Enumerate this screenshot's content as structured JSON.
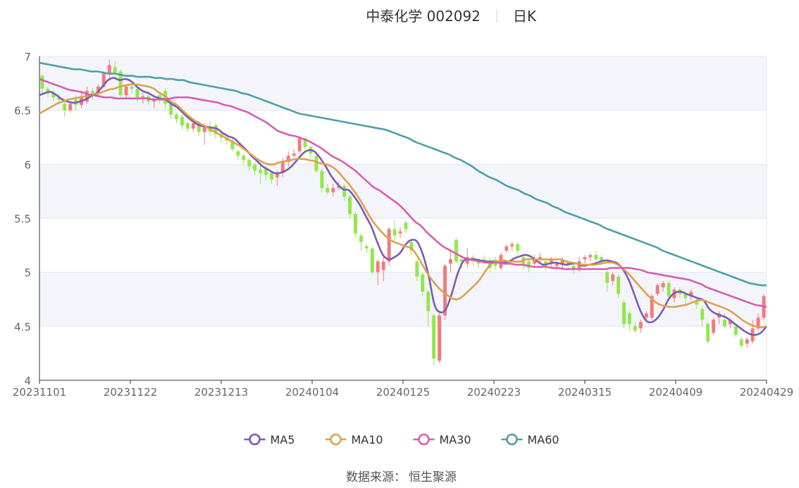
{
  "header": {
    "stock_name": "中泰化学 002092",
    "period": "日K"
  },
  "source": {
    "label": "数据来源：",
    "value": "恒生聚源"
  },
  "colors": {
    "up": "#f47a7a",
    "down": "#91e84a",
    "MA5": "#7b5cb5",
    "MA10": "#e0a050",
    "MA30": "#d65fb0",
    "MA60": "#4e9fa6",
    "band": "#f3f5fb",
    "grid": "#e2e6f0",
    "axis": "#666666"
  },
  "chart_data": {
    "type": "candlestick",
    "x_labels": [
      "20231101",
      "20231122",
      "20231213",
      "20240104",
      "20240125",
      "20240223",
      "20240315",
      "20240409",
      "20240429"
    ],
    "ylim": [
      4,
      7
    ],
    "yticks": [
      4,
      4.5,
      5,
      5.5,
      6,
      6.5,
      7
    ],
    "legend": [
      "MA5",
      "MA10",
      "MA30",
      "MA60"
    ],
    "legend_position": "bottom",
    "candles": [
      [
        6.82,
        6.7,
        6.84,
        6.66
      ],
      [
        6.7,
        6.66,
        6.72,
        6.62
      ],
      [
        6.66,
        6.62,
        6.69,
        6.58
      ],
      [
        6.62,
        6.6,
        6.65,
        6.56
      ],
      [
        6.56,
        6.5,
        6.58,
        6.44
      ],
      [
        6.5,
        6.56,
        6.58,
        6.48
      ],
      [
        6.6,
        6.55,
        6.64,
        6.5
      ],
      [
        6.55,
        6.62,
        6.66,
        6.52
      ],
      [
        6.58,
        6.68,
        6.72,
        6.56
      ],
      [
        6.68,
        6.65,
        6.7,
        6.6
      ],
      [
        6.65,
        6.72,
        6.74,
        6.62
      ],
      [
        6.72,
        6.84,
        6.86,
        6.7
      ],
      [
        6.84,
        6.92,
        6.97,
        6.8
      ],
      [
        6.9,
        6.85,
        6.96,
        6.82
      ],
      [
        6.86,
        6.64,
        6.88,
        6.6
      ],
      [
        6.64,
        6.72,
        6.74,
        6.6
      ],
      [
        6.72,
        6.7,
        6.75,
        6.66
      ],
      [
        6.7,
        6.62,
        6.72,
        6.58
      ],
      [
        6.62,
        6.63,
        6.66,
        6.56
      ],
      [
        6.63,
        6.58,
        6.65,
        6.55
      ],
      [
        6.58,
        6.6,
        6.62,
        6.52
      ],
      [
        6.64,
        6.62,
        6.66,
        6.56
      ],
      [
        6.68,
        6.56,
        6.7,
        6.52
      ],
      [
        6.56,
        6.46,
        6.58,
        6.42
      ],
      [
        6.46,
        6.42,
        6.48,
        6.38
      ],
      [
        6.44,
        6.36,
        6.46,
        6.32
      ],
      [
        6.38,
        6.33,
        6.4,
        6.3
      ],
      [
        6.33,
        6.38,
        6.4,
        6.3
      ],
      [
        6.38,
        6.3,
        6.4,
        6.26
      ],
      [
        6.3,
        6.35,
        6.38,
        6.18
      ],
      [
        6.35,
        6.3,
        6.4,
        6.26
      ],
      [
        6.36,
        6.28,
        6.38,
        6.24
      ],
      [
        6.28,
        6.25,
        6.32,
        6.2
      ],
      [
        6.25,
        6.22,
        6.28,
        6.18
      ],
      [
        6.22,
        6.14,
        6.24,
        6.12
      ],
      [
        6.12,
        6.08,
        6.14,
        6.04
      ],
      [
        6.08,
        6.04,
        6.1,
        6.0
      ],
      [
        6.04,
        5.98,
        6.06,
        5.94
      ],
      [
        6.0,
        5.94,
        6.02,
        5.9
      ],
      [
        5.95,
        5.92,
        6.04,
        5.82
      ],
      [
        5.96,
        5.9,
        5.98,
        5.86
      ],
      [
        5.92,
        5.86,
        5.94,
        5.82
      ],
      [
        5.88,
        5.92,
        5.94,
        5.8
      ],
      [
        5.92,
        6.02,
        6.06,
        5.88
      ],
      [
        6.02,
        6.08,
        6.12,
        5.98
      ],
      [
        6.08,
        6.1,
        6.14,
        6.06
      ],
      [
        6.12,
        6.24,
        6.26,
        6.1
      ],
      [
        6.24,
        6.16,
        6.26,
        6.12
      ],
      [
        6.16,
        6.1,
        6.18,
        6.06
      ],
      [
        6.08,
        5.94,
        6.1,
        5.92
      ],
      [
        5.94,
        5.78,
        5.96,
        5.74
      ],
      [
        5.78,
        5.74,
        5.82,
        5.72
      ],
      [
        5.74,
        5.78,
        5.82,
        5.7
      ],
      [
        5.78,
        5.8,
        5.84,
        5.76
      ],
      [
        5.8,
        5.7,
        5.82,
        5.66
      ],
      [
        5.7,
        5.54,
        5.72,
        5.5
      ],
      [
        5.54,
        5.36,
        5.56,
        5.32
      ],
      [
        5.34,
        5.28,
        5.36,
        5.2
      ],
      [
        5.24,
        5.22,
        5.26,
        5.18
      ],
      [
        5.22,
        5.0,
        5.24,
        4.98
      ],
      [
        5.0,
        5.1,
        5.12,
        4.88
      ],
      [
        5.02,
        5.1,
        5.14,
        4.92
      ],
      [
        5.1,
        5.4,
        5.42,
        5.06
      ],
      [
        5.4,
        5.34,
        5.48,
        5.3
      ],
      [
        5.36,
        5.38,
        5.42,
        5.32
      ],
      [
        5.46,
        5.4,
        5.48,
        5.36
      ],
      [
        5.28,
        5.2,
        5.3,
        5.16
      ],
      [
        5.1,
        4.96,
        5.12,
        4.92
      ],
      [
        4.98,
        4.82,
        5.0,
        4.78
      ],
      [
        4.82,
        4.64,
        4.84,
        4.5
      ],
      [
        4.6,
        4.2,
        4.62,
        4.14
      ],
      [
        4.18,
        4.6,
        4.62,
        4.16
      ],
      [
        4.6,
        5.06,
        5.08,
        4.56
      ],
      [
        5.08,
        5.12,
        5.22,
        5.0
      ],
      [
        5.3,
        5.1,
        5.32,
        5.08
      ],
      [
        5.12,
        5.1,
        5.14,
        5.04
      ],
      [
        5.08,
        5.14,
        5.22,
        5.04
      ],
      [
        5.14,
        5.12,
        5.16,
        5.06
      ],
      [
        5.1,
        5.08,
        5.12,
        5.04
      ],
      [
        5.12,
        5.1,
        5.16,
        5.08
      ],
      [
        5.08,
        5.04,
        5.14,
        5.0
      ],
      [
        5.12,
        5.06,
        5.14,
        5.02
      ],
      [
        5.04,
        5.16,
        5.18,
        5.02
      ],
      [
        5.2,
        5.24,
        5.26,
        5.18
      ],
      [
        5.24,
        5.26,
        5.28,
        5.2
      ],
      [
        5.26,
        5.2,
        5.28,
        5.16
      ],
      [
        5.14,
        5.06,
        5.16,
        5.02
      ],
      [
        5.1,
        5.04,
        5.12,
        5.0
      ],
      [
        5.08,
        5.12,
        5.16,
        5.06
      ],
      [
        5.12,
        5.14,
        5.18,
        5.08
      ],
      [
        5.1,
        5.06,
        5.12,
        5.02
      ],
      [
        5.08,
        5.12,
        5.14,
        5.04
      ],
      [
        5.06,
        5.08,
        5.1,
        5.02
      ],
      [
        5.08,
        5.12,
        5.14,
        5.04
      ],
      [
        5.1,
        5.08,
        5.12,
        5.04
      ],
      [
        5.06,
        5.02,
        5.08,
        4.98
      ],
      [
        5.02,
        5.1,
        5.14,
        5.0
      ],
      [
        5.12,
        5.14,
        5.16,
        5.08
      ],
      [
        5.14,
        5.16,
        5.18,
        5.1
      ],
      [
        5.16,
        5.12,
        5.2,
        5.08
      ],
      [
        5.14,
        5.1,
        5.16,
        5.06
      ],
      [
        5.0,
        4.9,
        5.02,
        4.82
      ],
      [
        4.92,
        4.98,
        5.0,
        4.88
      ],
      [
        4.96,
        4.8,
        4.98,
        4.76
      ],
      [
        4.72,
        4.52,
        4.74,
        4.48
      ],
      [
        4.62,
        4.52,
        4.64,
        4.46
      ],
      [
        4.5,
        4.46,
        4.54,
        4.44
      ],
      [
        4.48,
        4.54,
        4.56,
        4.44
      ],
      [
        4.58,
        4.62,
        4.64,
        4.54
      ],
      [
        4.58,
        4.78,
        4.8,
        4.56
      ],
      [
        4.8,
        4.88,
        4.9,
        4.78
      ],
      [
        4.86,
        4.9,
        4.92,
        4.82
      ],
      [
        4.9,
        4.78,
        4.92,
        4.74
      ],
      [
        4.76,
        4.84,
        4.86,
        4.72
      ],
      [
        4.84,
        4.8,
        4.86,
        4.76
      ],
      [
        4.8,
        4.76,
        4.82,
        4.7
      ],
      [
        4.78,
        4.82,
        4.84,
        4.74
      ],
      [
        4.74,
        4.7,
        4.76,
        4.66
      ],
      [
        4.66,
        4.56,
        4.68,
        4.5
      ],
      [
        4.52,
        4.36,
        4.54,
        4.34
      ],
      [
        4.44,
        4.56,
        4.58,
        4.42
      ],
      [
        4.58,
        4.62,
        4.64,
        4.52
      ],
      [
        4.56,
        4.5,
        4.62,
        4.48
      ],
      [
        4.52,
        4.56,
        4.58,
        4.48
      ],
      [
        4.5,
        4.42,
        4.52,
        4.4
      ],
      [
        4.38,
        4.32,
        4.4,
        4.3
      ],
      [
        4.34,
        4.38,
        4.4,
        4.3
      ],
      [
        4.36,
        4.48,
        4.56,
        4.34
      ],
      [
        4.48,
        4.58,
        4.62,
        4.46
      ],
      [
        4.58,
        4.78,
        4.8,
        4.56
      ]
    ],
    "series": [
      {
        "name": "MA5",
        "values": [
          6.64,
          6.66,
          6.67,
          6.64,
          6.6,
          6.58,
          6.57,
          6.58,
          6.6,
          6.63,
          6.66,
          6.72,
          6.78,
          6.8,
          6.78,
          6.79,
          6.77,
          6.72,
          6.68,
          6.66,
          6.63,
          6.61,
          6.6,
          6.56,
          6.53,
          6.48,
          6.43,
          6.39,
          6.36,
          6.35,
          6.34,
          6.33,
          6.29,
          6.26,
          6.24,
          6.19,
          6.14,
          6.08,
          6.03,
          5.98,
          5.95,
          5.92,
          5.92,
          5.94,
          5.98,
          6.04,
          6.1,
          6.13,
          6.12,
          6.06,
          5.98,
          5.89,
          5.82,
          5.77,
          5.76,
          5.7,
          5.62,
          5.52,
          5.42,
          5.28,
          5.16,
          5.12,
          5.14,
          5.18,
          5.26,
          5.3,
          5.28,
          5.16,
          4.96,
          4.7,
          4.63,
          4.66,
          4.8,
          4.98,
          5.1,
          5.12,
          5.12,
          5.11,
          5.1,
          5.1,
          5.09,
          5.09,
          5.1,
          5.13,
          5.15,
          5.16,
          5.14,
          5.1,
          5.07,
          5.08,
          5.09,
          5.08,
          5.07,
          5.08,
          5.08,
          5.06,
          5.07,
          5.08,
          5.1,
          5.11,
          5.1,
          5.08,
          5.02,
          4.92,
          4.78,
          4.64,
          4.55,
          4.54,
          4.58,
          4.66,
          4.76,
          4.81,
          4.82,
          4.8,
          4.78,
          4.76,
          4.74,
          4.66,
          4.62,
          4.6,
          4.58,
          4.54,
          4.5,
          4.46,
          4.43,
          4.42,
          4.44,
          4.5
        ]
      },
      {
        "name": "MA10",
        "values": [
          6.47,
          6.5,
          6.53,
          6.56,
          6.58,
          6.6,
          6.61,
          6.62,
          6.63,
          6.64,
          6.65,
          6.67,
          6.69,
          6.7,
          6.72,
          6.73,
          6.74,
          6.74,
          6.73,
          6.72,
          6.7,
          6.66,
          6.63,
          6.58,
          6.55,
          6.5,
          6.45,
          6.41,
          6.38,
          6.35,
          6.32,
          6.29,
          6.26,
          6.23,
          6.2,
          6.17,
          6.13,
          6.09,
          6.05,
          6.02,
          6.0,
          6.0,
          6.02,
          6.03,
          6.04,
          6.05,
          6.05,
          6.04,
          6.03,
          6.01,
          6.0,
          5.98,
          5.94,
          5.88,
          5.82,
          5.75,
          5.67,
          5.58,
          5.49,
          5.42,
          5.36,
          5.31,
          5.28,
          5.26,
          5.24,
          5.22,
          5.15,
          5.06,
          4.97,
          4.9,
          4.84,
          4.8,
          4.76,
          4.75,
          4.78,
          4.83,
          4.88,
          4.94,
          5.02,
          5.08,
          5.1,
          5.11,
          5.1,
          5.1,
          5.1,
          5.12,
          5.12,
          5.12,
          5.12,
          5.12,
          5.12,
          5.12,
          5.1,
          5.09,
          5.08,
          5.07,
          5.07,
          5.07,
          5.08,
          5.09,
          5.09,
          5.07,
          5.03,
          4.98,
          4.92,
          4.86,
          4.8,
          4.75,
          4.71,
          4.69,
          4.68,
          4.68,
          4.69,
          4.7,
          4.72,
          4.74,
          4.74,
          4.72,
          4.7,
          4.68,
          4.66,
          4.63,
          4.59,
          4.55,
          4.52,
          4.5,
          4.49,
          4.5
        ]
      },
      {
        "name": "MA30",
        "values": [
          6.79,
          6.77,
          6.75,
          6.73,
          6.71,
          6.69,
          6.68,
          6.67,
          6.65,
          6.64,
          6.63,
          6.62,
          6.62,
          6.61,
          6.61,
          6.61,
          6.61,
          6.61,
          6.61,
          6.6,
          6.6,
          6.6,
          6.61,
          6.62,
          6.62,
          6.62,
          6.61,
          6.6,
          6.59,
          6.58,
          6.57,
          6.55,
          6.54,
          6.52,
          6.5,
          6.48,
          6.45,
          6.42,
          6.39,
          6.35,
          6.31,
          6.29,
          6.27,
          6.26,
          6.24,
          6.22,
          6.19,
          6.16,
          6.12,
          6.08,
          6.05,
          6.02,
          5.98,
          5.94,
          5.89,
          5.84,
          5.79,
          5.76,
          5.72,
          5.68,
          5.64,
          5.59,
          5.53,
          5.47,
          5.43,
          5.37,
          5.32,
          5.27,
          5.23,
          5.2,
          5.17,
          5.14,
          5.12,
          5.11,
          5.1,
          5.09,
          5.09,
          5.09,
          5.08,
          5.08,
          5.07,
          5.07,
          5.06,
          5.05,
          5.05,
          5.05,
          5.04,
          5.04,
          5.03,
          5.03,
          5.03,
          5.03,
          5.03,
          5.03,
          5.03,
          5.03,
          5.04,
          5.04,
          5.04,
          5.04,
          5.03,
          5.02,
          5.0,
          4.99,
          4.98,
          4.97,
          4.96,
          4.95,
          4.94,
          4.93,
          4.91,
          4.89,
          4.86,
          4.84,
          4.82,
          4.8,
          4.78,
          4.76,
          4.74,
          4.72,
          4.7,
          4.69,
          4.68
        ]
      },
      {
        "name": "MA60",
        "values": [
          6.94,
          6.93,
          6.92,
          6.91,
          6.9,
          6.89,
          6.88,
          6.88,
          6.87,
          6.86,
          6.86,
          6.85,
          6.84,
          6.84,
          6.83,
          6.82,
          6.82,
          6.81,
          6.81,
          6.81,
          6.8,
          6.8,
          6.79,
          6.79,
          6.78,
          6.78,
          6.76,
          6.75,
          6.74,
          6.73,
          6.72,
          6.71,
          6.7,
          6.69,
          6.68,
          6.66,
          6.65,
          6.63,
          6.61,
          6.59,
          6.57,
          6.55,
          6.53,
          6.51,
          6.49,
          6.47,
          6.46,
          6.45,
          6.44,
          6.43,
          6.42,
          6.41,
          6.4,
          6.39,
          6.38,
          6.37,
          6.36,
          6.35,
          6.34,
          6.33,
          6.32,
          6.3,
          6.28,
          6.26,
          6.24,
          6.21,
          6.19,
          6.17,
          6.15,
          6.13,
          6.11,
          6.09,
          6.06,
          6.04,
          6.01,
          5.98,
          5.94,
          5.91,
          5.88,
          5.86,
          5.83,
          5.8,
          5.78,
          5.76,
          5.73,
          5.71,
          5.68,
          5.66,
          5.64,
          5.61,
          5.59,
          5.56,
          5.54,
          5.52,
          5.5,
          5.48,
          5.46,
          5.44,
          5.41,
          5.39,
          5.37,
          5.35,
          5.33,
          5.31,
          5.29,
          5.27,
          5.25,
          5.23,
          5.2,
          5.18,
          5.16,
          5.14,
          5.12,
          5.1,
          5.08,
          5.06,
          5.04,
          5.02,
          5.0,
          4.98,
          4.96,
          4.94,
          4.92,
          4.9,
          4.89,
          4.88,
          4.88
        ]
      }
    ]
  }
}
